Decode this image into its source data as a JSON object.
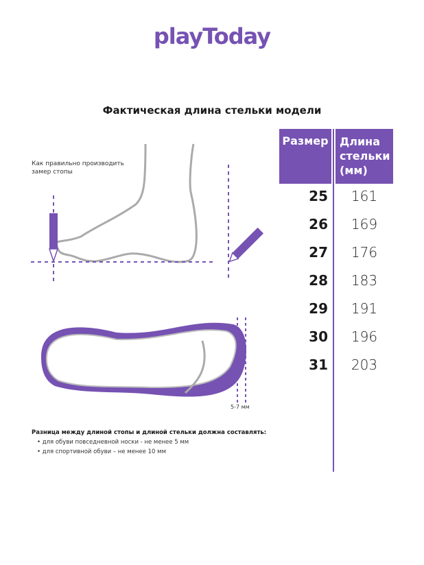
{
  "logo": "playToday",
  "title": "Фактическая длина стельки модели",
  "instruction": "Как правильно производить замер стопы",
  "gap_label": "5-7 мм",
  "table": {
    "headers": [
      "Размер",
      "Длина стельки (мм)"
    ],
    "rows": [
      {
        "size": "25",
        "length": "161"
      },
      {
        "size": "26",
        "length": "169"
      },
      {
        "size": "27",
        "length": "176"
      },
      {
        "size": "28",
        "length": "183"
      },
      {
        "size": "29",
        "length": "191"
      },
      {
        "size": "30",
        "length": "196"
      },
      {
        "size": "31",
        "length": "203"
      }
    ]
  },
  "note": {
    "title": "Разница между длиной стопы и длиной стельки должна составлять:",
    "items": [
      "для обуви повседневной носки -  не менее 5 мм",
      "для спортивной обуви – не менее 10 мм"
    ]
  },
  "colors": {
    "accent": "#7652b3",
    "outline": "#aaaaaa"
  }
}
